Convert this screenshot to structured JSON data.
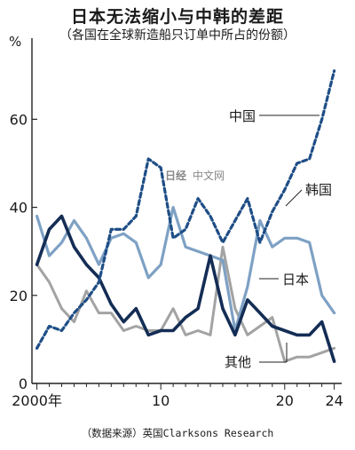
{
  "title": "日本无法缩小与中韩的差距",
  "subtitle": "（各国在全球新造船只订单中所占的份额）",
  "source": "（数据来源）英国Clarksons Research",
  "watermark": {
    "brand": "日经",
    "site": "中文网"
  },
  "colors": {
    "china": "#1f4e86",
    "korea": "#7ea1c4",
    "japan": "#142d55",
    "others": "#a3a3a3"
  },
  "chart_data": {
    "type": "line",
    "unit": "%",
    "x_tick_labels": [
      "2000年",
      "10",
      "20",
      "24"
    ],
    "x_tick_values": [
      2000,
      2010,
      2020,
      2024
    ],
    "y_ticks": [
      0,
      20,
      40,
      60
    ],
    "xlim": [
      1999.6,
      2024.6
    ],
    "ylim": [
      0,
      76
    ],
    "grid": false,
    "x": [
      2000,
      2001,
      2002,
      2003,
      2004,
      2005,
      2006,
      2007,
      2008,
      2009,
      2010,
      2011,
      2012,
      2013,
      2014,
      2015,
      2016,
      2017,
      2018,
      2019,
      2020,
      2021,
      2022,
      2023,
      2024
    ],
    "series": [
      {
        "name": "中国",
        "style": "dashed",
        "values": [
          8,
          13,
          12,
          16,
          19,
          23,
          35,
          35,
          38,
          51,
          49,
          33,
          35,
          42,
          38,
          32,
          37,
          42,
          32,
          39,
          44,
          50,
          51,
          60,
          71
        ]
      },
      {
        "name": "韩国",
        "style": "solid",
        "values": [
          38,
          29,
          32,
          37,
          33,
          27,
          33,
          34,
          32,
          24,
          27,
          40,
          31,
          30,
          29,
          28,
          12,
          22,
          37,
          31,
          33,
          33,
          32,
          20,
          16
        ]
      },
      {
        "name": "日本",
        "style": "solid",
        "values": [
          27,
          35,
          38,
          31,
          27,
          24,
          18,
          14,
          17,
          11,
          12,
          12,
          15,
          17,
          29,
          17,
          11,
          19,
          16,
          13,
          12,
          11,
          11,
          14,
          5
        ]
      },
      {
        "name": "其他",
        "style": "solid",
        "values": [
          27,
          23,
          17,
          14,
          21,
          16,
          16,
          12,
          13,
          12,
          12,
          17,
          11,
          12,
          11,
          31,
          17,
          11,
          13,
          15,
          5,
          6,
          6,
          7,
          8
        ]
      }
    ]
  }
}
